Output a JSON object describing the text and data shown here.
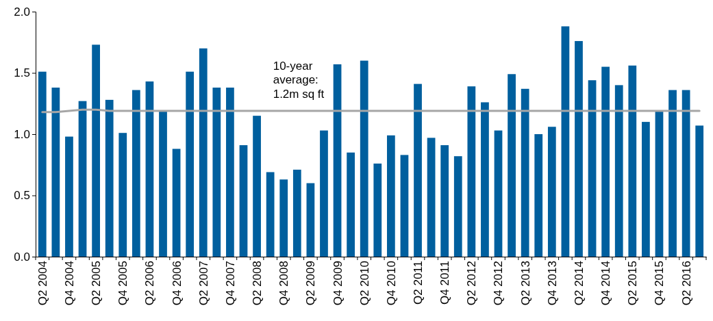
{
  "chart_data": {
    "type": "bar",
    "categories": [
      "Q2 2004",
      null,
      "Q4 2004",
      null,
      "Q2 2005",
      null,
      "Q4 2005",
      null,
      "Q2 2006",
      null,
      "Q4 2006",
      null,
      "Q2 2007",
      null,
      "Q4 2007",
      null,
      "Q2 2008",
      null,
      "Q4 2008",
      null,
      "Q2 2009",
      null,
      "Q4 2009",
      null,
      "Q2 2010",
      null,
      "Q4 2010",
      null,
      "Q2 2011",
      null,
      "Q4 2011",
      null,
      "Q2 2012",
      null,
      "Q4 2012",
      null,
      "Q2 2013",
      null,
      "Q4 2013",
      null,
      "Q2 2014",
      null,
      "Q4 2014",
      null,
      "Q2 2015",
      null,
      "Q4 2015",
      null,
      "Q2 2016",
      null
    ],
    "series": [
      {
        "color": "#005f9e",
        "values": [
          1.51,
          1.38,
          0.98,
          1.27,
          1.73,
          1.28,
          1.01,
          1.36,
          1.43,
          1.19,
          0.88,
          1.51,
          1.7,
          1.38,
          1.38,
          0.91,
          1.15,
          0.69,
          0.63,
          0.71,
          0.6,
          1.03,
          1.57,
          0.85,
          1.6,
          0.76,
          0.99,
          0.83,
          1.41,
          0.97,
          0.91,
          0.82,
          1.39,
          1.26,
          1.03,
          1.49,
          1.37,
          1.0,
          1.06,
          1.88,
          1.76,
          1.44,
          1.55,
          1.4,
          1.56,
          1.1,
          1.19,
          1.36,
          1.36,
          1.07
        ]
      },
      {
        "type": "line",
        "color": "#a6a6a6",
        "values": [
          1.18,
          1.18,
          1.19,
          1.2,
          1.2,
          1.19,
          1.19,
          1.19,
          1.19,
          1.19,
          1.19,
          1.19,
          1.19,
          1.19,
          1.19,
          1.19,
          1.19,
          1.19,
          1.19,
          1.19,
          1.19,
          1.19,
          1.19,
          1.19,
          1.19,
          1.19,
          1.19,
          1.19,
          1.19,
          1.19,
          1.19,
          1.19,
          1.19,
          1.19,
          1.19,
          1.19,
          1.19,
          1.19,
          1.19,
          1.19,
          1.19,
          1.19,
          1.19,
          1.19,
          1.19,
          1.19,
          1.19,
          1.19,
          1.19,
          1.19
        ]
      }
    ],
    "annotations": [
      {
        "text": "10-year\naverage:\n1.2m sq ft",
        "x": "Q4 2009",
        "y": 1.19
      }
    ],
    "ylim": [
      0,
      2
    ],
    "yticks": [
      {
        "value": 0,
        "label": "0.0"
      },
      {
        "value": 0.5,
        "label": "0.5"
      },
      {
        "value": 1,
        "label": "1.0"
      },
      {
        "value": 1.5,
        "label": "1.5"
      },
      {
        "value": 2,
        "label": "2.0"
      }
    ],
    "grid": false
  }
}
